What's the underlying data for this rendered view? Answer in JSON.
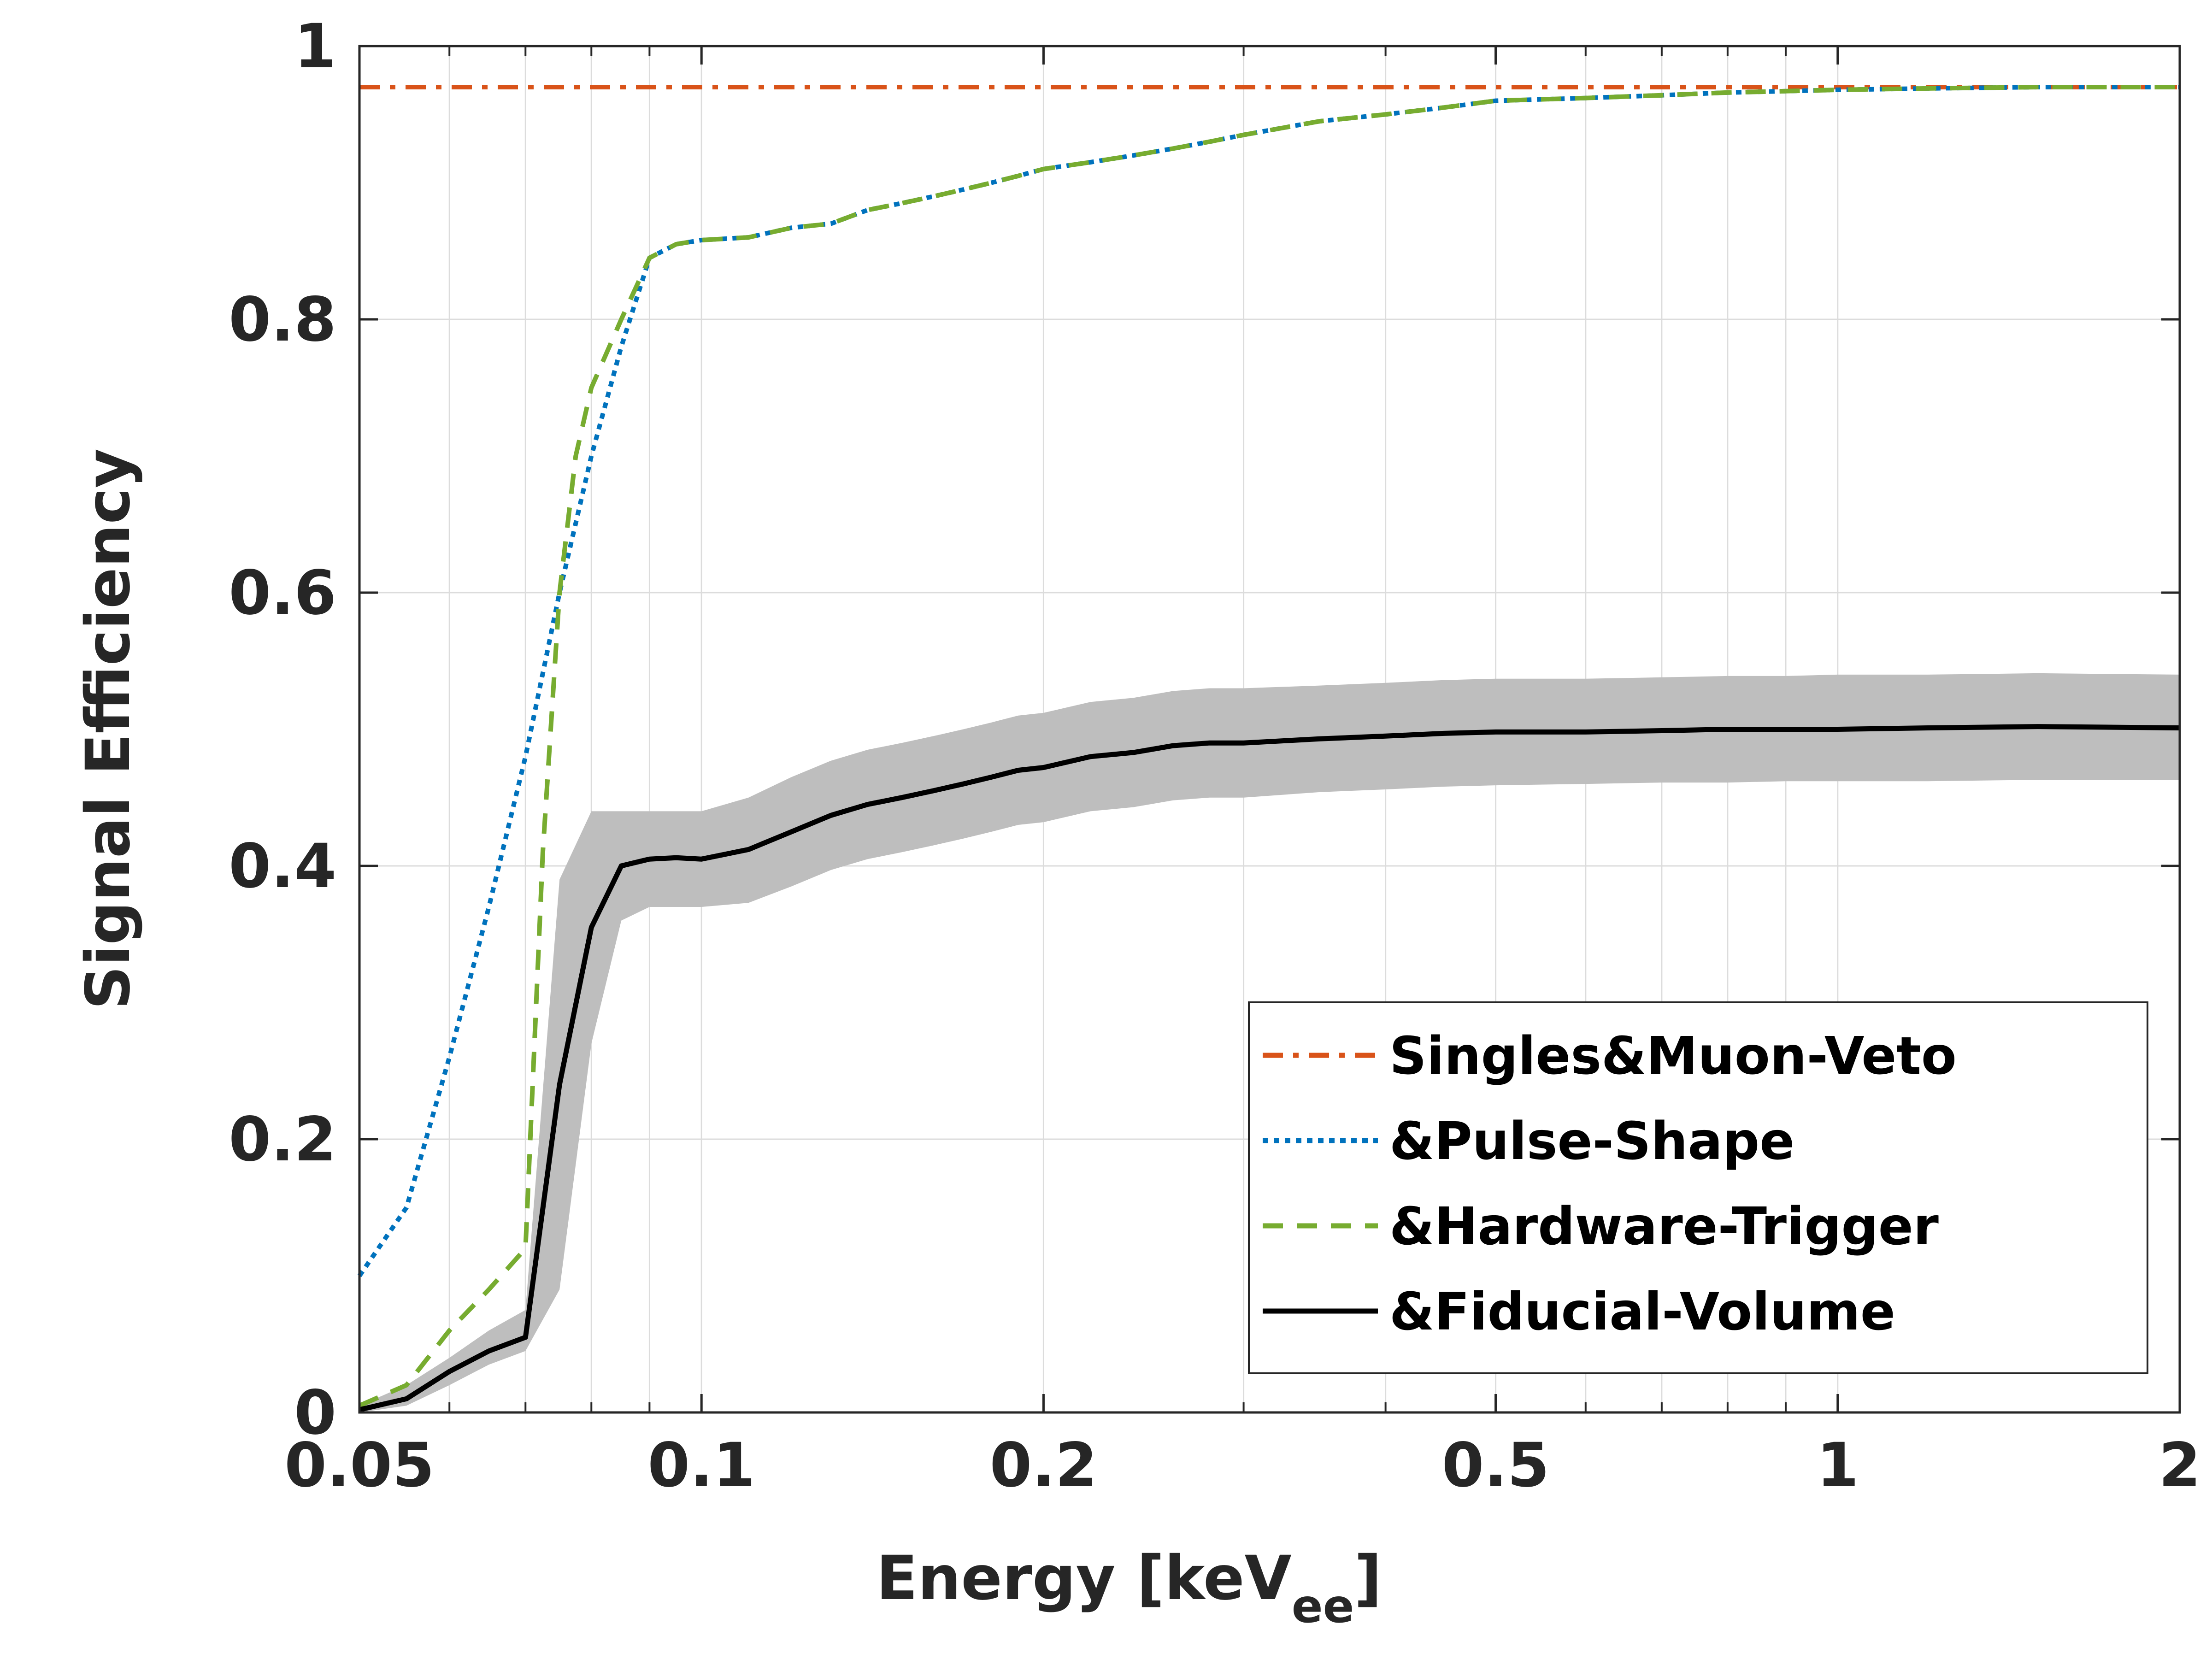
{
  "chart_data": {
    "type": "line",
    "title": "",
    "xlabel": "Energy [keV",
    "xlabel_subscript": "ee",
    "xlabel_close": "]",
    "ylabel": "Signal Efficiency",
    "xscale": "log",
    "xlim": [
      0.05,
      2
    ],
    "ylim": [
      0,
      1
    ],
    "grid": true,
    "legend_position": "bottom-right",
    "x_ticks": [
      {
        "value": 0.05,
        "label": "0.05"
      },
      {
        "value": 0.1,
        "label": "0.1"
      },
      {
        "value": 0.2,
        "label": "0.2"
      },
      {
        "value": 0.5,
        "label": "0.5"
      },
      {
        "value": 1,
        "label": "1"
      },
      {
        "value": 2,
        "label": "2"
      }
    ],
    "x_minor_ticks": [
      0.06,
      0.07,
      0.08,
      0.09,
      0.3,
      0.4,
      0.6,
      0.7,
      0.8,
      0.9
    ],
    "y_ticks": [
      {
        "value": 0,
        "label": "0"
      },
      {
        "value": 0.2,
        "label": "0.2"
      },
      {
        "value": 0.4,
        "label": "0.4"
      },
      {
        "value": 0.6,
        "label": "0.6"
      },
      {
        "value": 0.8,
        "label": "0.8"
      },
      {
        "value": 1,
        "label": "1"
      }
    ],
    "series": [
      {
        "name": "Singles&Muon-Veto",
        "color": "#D95319",
        "style": "dashdot",
        "x": [
          0.05,
          2
        ],
        "y": [
          0.97,
          0.97
        ]
      },
      {
        "name": "&Pulse-Shape",
        "color": "#0072BD",
        "style": "dotted",
        "x": [
          0.05,
          0.055,
          0.06,
          0.065,
          0.07,
          0.075,
          0.08,
          0.085,
          0.09,
          0.095,
          0.1,
          0.11,
          0.12,
          0.13,
          0.14,
          0.15,
          0.16,
          0.17,
          0.18,
          0.19,
          0.2,
          0.22,
          0.24,
          0.26,
          0.28,
          0.3,
          0.35,
          0.4,
          0.45,
          0.5,
          0.6,
          0.7,
          0.8,
          0.9,
          1.0,
          1.2,
          1.5,
          2.0
        ],
        "y": [
          0.1,
          0.15,
          0.26,
          0.37,
          0.48,
          0.6,
          0.7,
          0.78,
          0.845,
          0.855,
          0.858,
          0.86,
          0.867,
          0.87,
          0.88,
          0.885,
          0.89,
          0.895,
          0.9,
          0.905,
          0.91,
          0.915,
          0.92,
          0.925,
          0.93,
          0.935,
          0.945,
          0.95,
          0.955,
          0.96,
          0.962,
          0.964,
          0.966,
          0.967,
          0.968,
          0.969,
          0.97,
          0.97
        ]
      },
      {
        "name": "&Hardware-Trigger",
        "color": "#77AC30",
        "style": "dashed",
        "x": [
          0.05,
          0.055,
          0.06,
          0.065,
          0.07,
          0.0725,
          0.075,
          0.0775,
          0.08,
          0.085,
          0.09,
          0.095,
          0.1,
          0.11,
          0.12,
          0.13,
          0.14,
          0.15,
          0.16,
          0.17,
          0.18,
          0.19,
          0.2,
          0.22,
          0.24,
          0.26,
          0.28,
          0.3,
          0.35,
          0.4,
          0.45,
          0.5,
          0.6,
          0.7,
          0.8,
          0.9,
          1.0,
          1.2,
          1.5,
          2.0
        ],
        "y": [
          0.005,
          0.02,
          0.06,
          0.09,
          0.12,
          0.41,
          0.6,
          0.7,
          0.75,
          0.8,
          0.845,
          0.855,
          0.858,
          0.86,
          0.867,
          0.87,
          0.88,
          0.885,
          0.89,
          0.895,
          0.9,
          0.905,
          0.91,
          0.915,
          0.92,
          0.925,
          0.93,
          0.935,
          0.945,
          0.95,
          0.955,
          0.96,
          0.962,
          0.964,
          0.966,
          0.967,
          0.968,
          0.969,
          0.97,
          0.97
        ]
      },
      {
        "name": "&Fiducial-Volume",
        "color": "#000000",
        "style": "solid",
        "x": [
          0.05,
          0.055,
          0.06,
          0.065,
          0.07,
          0.075,
          0.08,
          0.085,
          0.09,
          0.095,
          0.1,
          0.11,
          0.12,
          0.13,
          0.14,
          0.15,
          0.16,
          0.17,
          0.18,
          0.19,
          0.2,
          0.22,
          0.24,
          0.26,
          0.28,
          0.3,
          0.35,
          0.4,
          0.45,
          0.5,
          0.6,
          0.7,
          0.8,
          0.9,
          1.0,
          1.2,
          1.5,
          2.0
        ],
        "y": [
          0.002,
          0.01,
          0.03,
          0.045,
          0.055,
          0.24,
          0.355,
          0.4,
          0.405,
          0.406,
          0.405,
          0.412,
          0.425,
          0.437,
          0.445,
          0.45,
          0.455,
          0.46,
          0.465,
          0.47,
          0.472,
          0.48,
          0.483,
          0.488,
          0.49,
          0.49,
          0.493,
          0.495,
          0.497,
          0.498,
          0.498,
          0.499,
          0.5,
          0.5,
          0.5,
          0.501,
          0.502,
          0.501
        ],
        "band_lower": [
          0.0,
          0.005,
          0.02,
          0.035,
          0.045,
          0.09,
          0.27,
          0.36,
          0.37,
          0.37,
          0.37,
          0.373,
          0.385,
          0.397,
          0.405,
          0.41,
          0.415,
          0.42,
          0.425,
          0.43,
          0.432,
          0.44,
          0.443,
          0.448,
          0.45,
          0.45,
          0.454,
          0.456,
          0.458,
          0.459,
          0.46,
          0.461,
          0.461,
          0.462,
          0.462,
          0.462,
          0.463,
          0.463
        ],
        "band_upper": [
          0.005,
          0.02,
          0.04,
          0.06,
          0.075,
          0.39,
          0.44,
          0.44,
          0.44,
          0.44,
          0.44,
          0.45,
          0.465,
          0.477,
          0.485,
          0.49,
          0.495,
          0.5,
          0.505,
          0.51,
          0.512,
          0.52,
          0.523,
          0.528,
          0.53,
          0.53,
          0.532,
          0.534,
          0.536,
          0.537,
          0.537,
          0.538,
          0.539,
          0.539,
          0.54,
          0.54,
          0.541,
          0.54
        ],
        "band_color": "#BEBEBE"
      }
    ]
  }
}
